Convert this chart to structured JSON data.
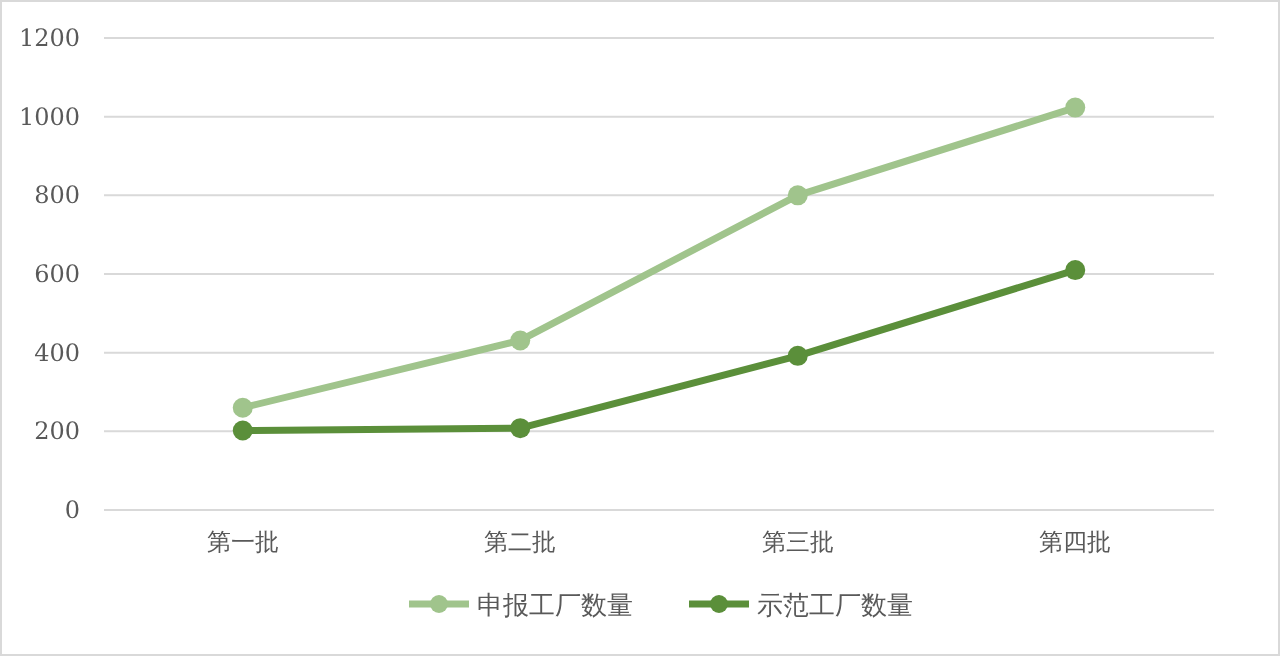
{
  "chart_data": {
    "type": "line",
    "categories": [
      "第一批",
      "第二批",
      "第三批",
      "第四批"
    ],
    "series": [
      {
        "name": "申报工厂数量",
        "color": "#a0c48c",
        "values": [
          260,
          431,
          800,
          1023
        ]
      },
      {
        "name": "示范工厂数量",
        "color": "#5b8f3a",
        "values": [
          202,
          208,
          392,
          610
        ]
      }
    ],
    "ylim": [
      0,
      1200
    ],
    "yticks": [
      0,
      200,
      400,
      600,
      800,
      1000,
      1200
    ],
    "grid": "y",
    "legend": "bottom",
    "marker": "circle"
  }
}
